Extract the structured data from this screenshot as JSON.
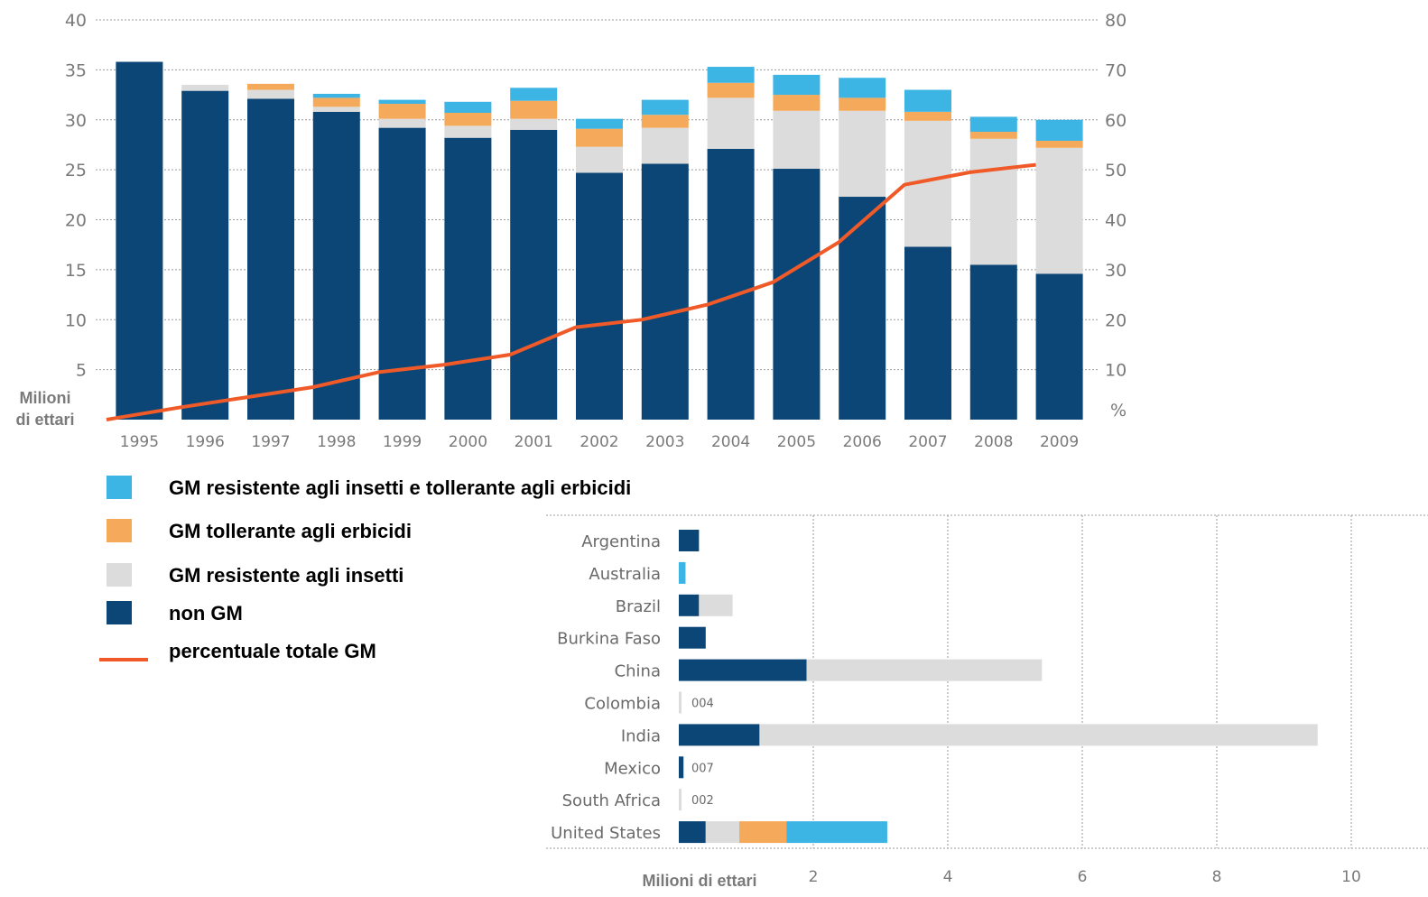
{
  "colors": {
    "non_gm": "#0b4677",
    "insect": "#dcdcdc",
    "herb": "#f5a95a",
    "both": "#3db5e4",
    "line": "#f05a28",
    "grid": "#9a9a9a"
  },
  "legend": {
    "items": [
      {
        "key": "both",
        "label": "GM resistente agli insetti e tollerante agli erbicidi"
      },
      {
        "key": "herb",
        "label": "GM tollerante agli erbicidi"
      },
      {
        "key": "insect",
        "label": "GM resistente agli insetti"
      },
      {
        "key": "non_gm",
        "label": "non GM"
      },
      {
        "key": "line",
        "label": "percentuale totale GM"
      }
    ]
  },
  "chart_data": [
    {
      "type": "bar",
      "stacked": true,
      "categories": [
        "1995",
        "1996",
        "1997",
        "1998",
        "1999",
        "2000",
        "2001",
        "2002",
        "2003",
        "2004",
        "2005",
        "2006",
        "2007",
        "2008",
        "2009"
      ],
      "series": [
        {
          "key": "non_gm",
          "name": "non GM",
          "values": [
            35.8,
            32.9,
            32.1,
            30.8,
            29.2,
            28.2,
            29.0,
            24.7,
            25.6,
            27.1,
            25.1,
            22.3,
            17.3,
            15.5,
            14.6
          ]
        },
        {
          "key": "insect",
          "name": "GM resistente agli insetti",
          "values": [
            0,
            0.6,
            0.9,
            0.5,
            0.9,
            1.2,
            1.1,
            2.6,
            3.6,
            5.1,
            5.8,
            8.6,
            12.6,
            12.6,
            12.6
          ]
        },
        {
          "key": "herb",
          "name": "GM tollerante agli erbicidi",
          "values": [
            0,
            0,
            0.6,
            0.9,
            1.5,
            1.3,
            1.8,
            1.8,
            1.3,
            1.5,
            1.6,
            1.3,
            0.9,
            0.7,
            0.7
          ]
        },
        {
          "key": "both",
          "name": "GM resistente agli insetti e tollerante agli erbicidi",
          "values": [
            0,
            0,
            0,
            0.4,
            0.4,
            1.1,
            1.3,
            1.0,
            1.5,
            1.6,
            2.0,
            2.0,
            2.2,
            1.5,
            2.1
          ]
        }
      ],
      "line": {
        "key": "line",
        "name": "percentuale totale GM",
        "axis": "right",
        "values": [
          0,
          2.5,
          4.5,
          6.5,
          9.5,
          11,
          13,
          18.5,
          20,
          23,
          27.5,
          35.5,
          47,
          49.5,
          51
        ]
      },
      "ylim": [
        0,
        40
      ],
      "yticks": [
        5,
        10,
        15,
        20,
        25,
        30,
        35,
        40
      ],
      "y2lim": [
        0,
        80
      ],
      "y2ticks": [
        10,
        20,
        30,
        40,
        50,
        60,
        70,
        80
      ],
      "y2unit": "%",
      "ylabel": "Milioni di ettari",
      "grid": true
    },
    {
      "type": "bar",
      "orientation": "horizontal",
      "stacked": true,
      "categories": [
        "Argentina",
        "Australia",
        "Brazil",
        "Burkina Faso",
        "China",
        "Colombia",
        "India",
        "Mexico",
        "South Africa",
        "United States"
      ],
      "series": [
        {
          "key": "non_gm",
          "name": "non GM",
          "values": [
            0.3,
            0,
            0.3,
            0.4,
            1.9,
            0,
            1.2,
            0.07,
            0,
            0.4
          ]
        },
        {
          "key": "insect",
          "name": "GM resistente agli insetti",
          "values": [
            0,
            0,
            0.5,
            0,
            3.5,
            0.04,
            8.3,
            0,
            0.02,
            0.5
          ]
        },
        {
          "key": "herb",
          "name": "GM tollerante agli erbicidi",
          "values": [
            0,
            0,
            0,
            0,
            0,
            0,
            0,
            0,
            0,
            0.7
          ]
        },
        {
          "key": "both",
          "name": "GM resistente agli insetti e tollerante agli erbicidi",
          "values": [
            0,
            0.1,
            0,
            0,
            0,
            0,
            0,
            0,
            0,
            1.5
          ]
        }
      ],
      "value_labels": {
        "Colombia": "0.04",
        "Mexico": "0.07",
        "South Africa": "0.02"
      },
      "xlim": [
        0,
        11
      ],
      "xticks": [
        2,
        4,
        6,
        8,
        10
      ],
      "xlabel": "Milioni di ettari",
      "grid": true
    }
  ]
}
